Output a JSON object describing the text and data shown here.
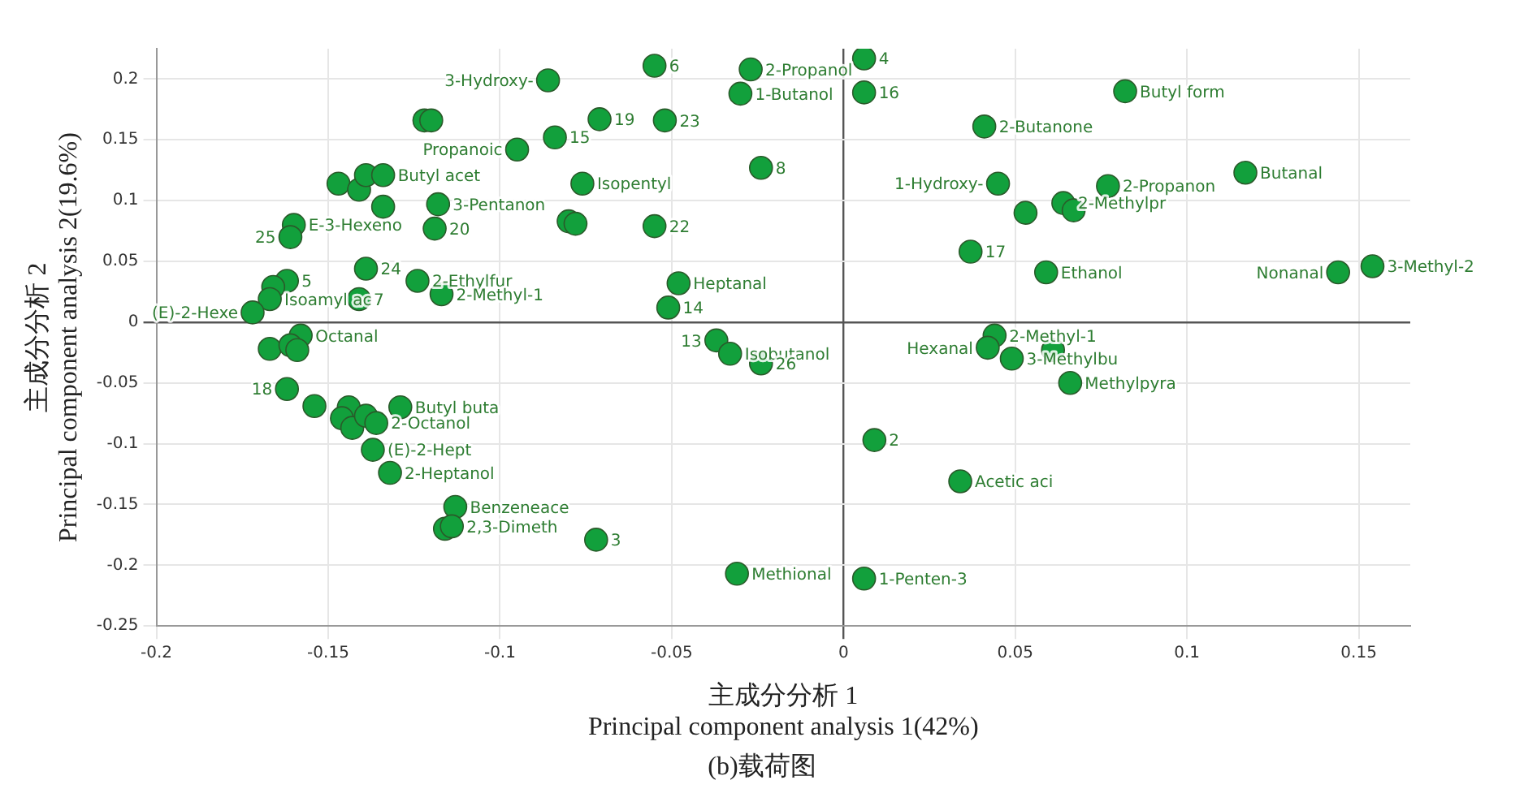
{
  "chart_data": {
    "type": "scatter",
    "xlabel": "主成分分析 1\nPrincipal component analysis 1(42%)",
    "ylabel": "主成分分析 2\nPrincipal component analysis 2(19.6%)",
    "xlim": [
      -0.2,
      0.165
    ],
    "xticks": [
      -0.2,
      -0.15,
      -0.1,
      -0.05,
      0,
      0.05,
      0.1,
      0.15
    ],
    "ylim": [
      -0.25,
      0.225
    ],
    "yticks": [
      -0.25,
      -0.2,
      -0.15,
      -0.1,
      -0.05,
      0,
      0.05,
      0.1,
      0.15,
      0.2
    ],
    "grid": true,
    "legend": false,
    "marker": "circle",
    "series": [
      {
        "color": "#12a03c",
        "x": [
          -0.122,
          -0.12,
          -0.147,
          -0.141,
          -0.139,
          -0.134,
          -0.134,
          -0.118,
          -0.119,
          -0.16,
          -0.161,
          -0.139,
          -0.124,
          -0.117,
          -0.162,
          -0.166,
          -0.167,
          -0.141,
          -0.172,
          -0.095,
          -0.055,
          -0.027,
          -0.03,
          -0.086,
          -0.071,
          -0.052,
          -0.084,
          -0.076,
          -0.024,
          -0.08,
          -0.078,
          -0.055,
          -0.048,
          -0.051,
          0.006,
          0.006,
          0.082,
          0.041,
          0.117,
          0.045,
          0.077,
          0.064,
          0.067,
          0.053,
          0.037,
          0.059,
          0.144,
          0.154,
          -0.158,
          -0.167,
          -0.161,
          -0.159,
          -0.162,
          -0.154,
          -0.144,
          -0.146,
          -0.143,
          -0.139,
          -0.129,
          -0.136,
          -0.137,
          -0.132,
          -0.113,
          -0.116,
          -0.114,
          -0.037,
          -0.033,
          -0.024,
          0.009,
          -0.072,
          -0.031,
          0.006,
          0.044,
          0.042,
          0.061,
          0.049,
          0.066,
          0.034
        ],
        "values": [
          0.166,
          0.166,
          0.114,
          0.109,
          0.121,
          0.121,
          0.095,
          0.097,
          0.077,
          0.08,
          0.07,
          0.044,
          0.034,
          0.023,
          0.034,
          0.029,
          0.019,
          0.019,
          0.008,
          0.142,
          0.211,
          0.208,
          0.188,
          0.199,
          0.167,
          0.166,
          0.152,
          0.114,
          0.127,
          0.083,
          0.081,
          0.079,
          0.032,
          0.012,
          0.217,
          0.189,
          0.19,
          0.161,
          0.123,
          0.114,
          0.112,
          0.098,
          0.092,
          0.09,
          0.058,
          0.041,
          0.041,
          0.046,
          -0.011,
          -0.022,
          -0.019,
          -0.023,
          -0.055,
          -0.069,
          -0.07,
          -0.079,
          -0.087,
          -0.077,
          -0.07,
          -0.083,
          -0.105,
          -0.124,
          -0.152,
          -0.17,
          -0.168,
          -0.015,
          -0.026,
          -0.034,
          -0.097,
          -0.179,
          -0.207,
          -0.211,
          -0.011,
          -0.021,
          -0.023,
          -0.03,
          -0.05,
          -0.131
        ]
      }
    ],
    "annotations": [
      {
        "text": "Butyl acet",
        "x": -0.134,
        "y": 0.121
      },
      {
        "text": "3-Pentanon",
        "x": -0.118,
        "y": 0.097
      },
      {
        "text": "20",
        "x": -0.119,
        "y": 0.077
      },
      {
        "text": "E-3-Hexeno",
        "x": -0.16,
        "y": 0.08
      },
      {
        "text": "25",
        "x": -0.161,
        "y": 0.07
      },
      {
        "text": "24",
        "x": -0.139,
        "y": 0.044
      },
      {
        "text": "2-Ethylfur",
        "x": -0.124,
        "y": 0.034
      },
      {
        "text": "2-Methyl-1",
        "x": -0.117,
        "y": 0.023
      },
      {
        "text": "5",
        "x": -0.162,
        "y": 0.034
      },
      {
        "text": "Isoamyl ac",
        "x": -0.167,
        "y": 0.019
      },
      {
        "text": "7",
        "x": -0.141,
        "y": 0.019
      },
      {
        "text": "(E)-2-Hexe",
        "x": -0.172,
        "y": 0.008
      },
      {
        "text": "Propanoic",
        "x": -0.095,
        "y": 0.142
      },
      {
        "text": "6",
        "x": -0.055,
        "y": 0.211
      },
      {
        "text": "2-Propanol",
        "x": -0.027,
        "y": 0.208
      },
      {
        "text": "1-Butanol",
        "x": -0.03,
        "y": 0.188
      },
      {
        "text": "3-Hydroxy-",
        "x": -0.086,
        "y": 0.199
      },
      {
        "text": "19",
        "x": -0.071,
        "y": 0.167
      },
      {
        "text": "23",
        "x": -0.052,
        "y": 0.166
      },
      {
        "text": "15",
        "x": -0.084,
        "y": 0.152
      },
      {
        "text": "Isopentyl",
        "x": -0.076,
        "y": 0.114
      },
      {
        "text": "8",
        "x": -0.024,
        "y": 0.127
      },
      {
        "text": "22",
        "x": -0.055,
        "y": 0.079
      },
      {
        "text": "Heptanal",
        "x": -0.048,
        "y": 0.032
      },
      {
        "text": "14",
        "x": -0.051,
        "y": 0.012
      },
      {
        "text": "4",
        "x": 0.006,
        "y": 0.217
      },
      {
        "text": "16",
        "x": 0.006,
        "y": 0.189
      },
      {
        "text": "Butyl form",
        "x": 0.082,
        "y": 0.19
      },
      {
        "text": "2-Butanone",
        "x": 0.041,
        "y": 0.161
      },
      {
        "text": "Butanal",
        "x": 0.117,
        "y": 0.123
      },
      {
        "text": "1-Hydroxy-",
        "x": 0.045,
        "y": 0.114
      },
      {
        "text": "2-Propanon",
        "x": 0.077,
        "y": 0.112
      },
      {
        "text": "2-Methylpr",
        "x": 0.064,
        "y": 0.098
      },
      {
        "text": "17",
        "x": 0.037,
        "y": 0.058
      },
      {
        "text": "Ethanol",
        "x": 0.059,
        "y": 0.041
      },
      {
        "text": "Nonanal",
        "x": 0.144,
        "y": 0.041
      },
      {
        "text": "3-Methyl-2",
        "x": 0.154,
        "y": 0.046
      },
      {
        "text": "Octanal",
        "x": -0.158,
        "y": -0.011
      },
      {
        "text": "18",
        "x": -0.162,
        "y": -0.055
      },
      {
        "text": "Butyl buta",
        "x": -0.129,
        "y": -0.07
      },
      {
        "text": "2-Octanol",
        "x": -0.136,
        "y": -0.083
      },
      {
        "text": "(E)-2-Hept",
        "x": -0.137,
        "y": -0.105
      },
      {
        "text": "2-Heptanol",
        "x": -0.132,
        "y": -0.124
      },
      {
        "text": "Benzeneace",
        "x": -0.113,
        "y": -0.152
      },
      {
        "text": "2,3-Dimeth",
        "x": -0.114,
        "y": -0.168
      },
      {
        "text": "13",
        "x": -0.037,
        "y": -0.015
      },
      {
        "text": "Isobutanol",
        "x": -0.033,
        "y": -0.026
      },
      {
        "text": "26",
        "x": -0.024,
        "y": -0.034
      },
      {
        "text": "2",
        "x": 0.009,
        "y": -0.097
      },
      {
        "text": "3",
        "x": -0.072,
        "y": -0.179
      },
      {
        "text": "Methional",
        "x": -0.031,
        "y": -0.207
      },
      {
        "text": "1-Penten-3",
        "x": 0.006,
        "y": -0.211
      },
      {
        "text": "2-Methyl-1",
        "x": 0.044,
        "y": -0.011
      },
      {
        "text": "Hexanal",
        "x": 0.042,
        "y": -0.021
      },
      {
        "text": "3-Methylbu",
        "x": 0.049,
        "y": -0.03
      },
      {
        "text": "Methylpyra",
        "x": 0.066,
        "y": -0.05
      },
      {
        "text": "Acetic aci",
        "x": 0.034,
        "y": -0.131
      },
      "(b)载荷图"
    ]
  }
}
